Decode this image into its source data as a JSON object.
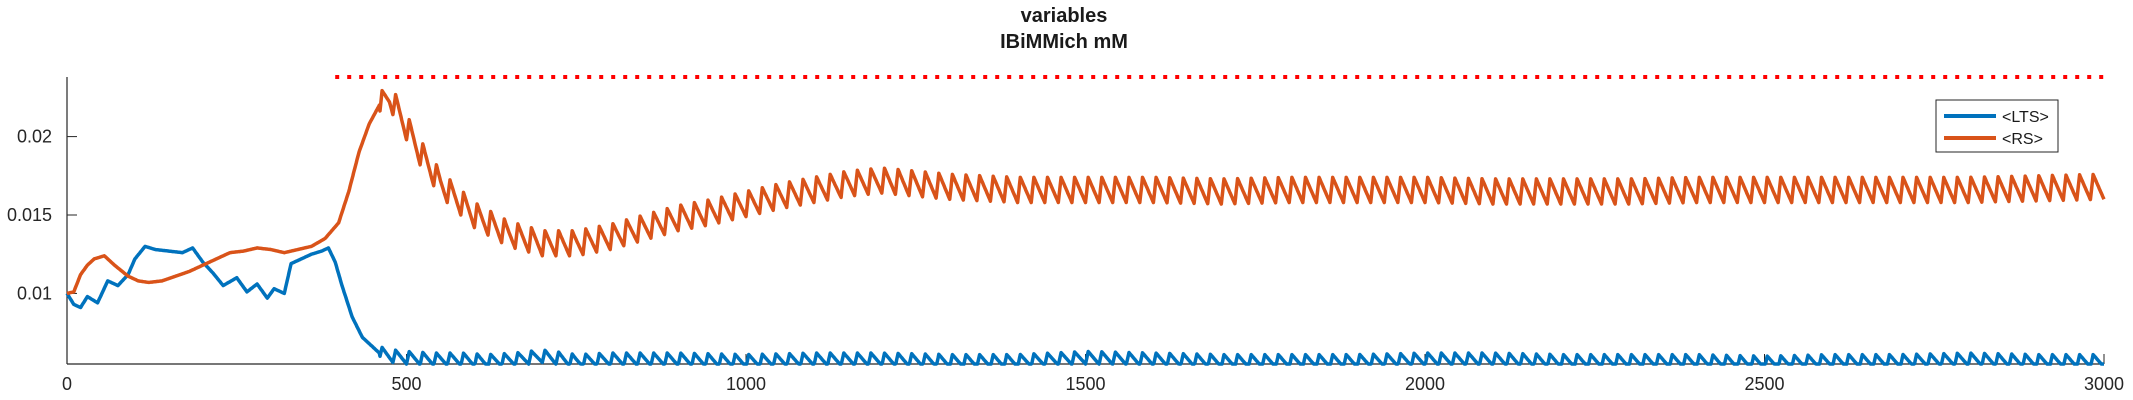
{
  "figure": {
    "title_line1": "variables",
    "title_line2": "IBiMMich mM"
  },
  "chart_data": {
    "type": "line",
    "title": "variables",
    "subtitle": "IBiMMich mM",
    "xlabel": "",
    "ylabel": "",
    "xlim": [
      0,
      3000
    ],
    "ylim": [
      0.0055,
      0.0238
    ],
    "x_ticks": [
      0,
      500,
      1000,
      1500,
      2000,
      2500,
      3000
    ],
    "x_tick_labels": [
      "0",
      "500",
      "1000",
      "1500",
      "2000",
      "2500",
      "3000"
    ],
    "y_ticks": [
      0.01,
      0.015,
      0.02
    ],
    "y_tick_labels": [
      "0.01",
      "0.015",
      "0.02"
    ],
    "grid": false,
    "legend_position": "top-right",
    "series": [
      {
        "name": "<LTS>",
        "color": "#0072BD",
        "x": [
          0,
          10,
          20,
          30,
          45,
          60,
          75,
          90,
          100,
          115,
          130,
          150,
          170,
          185,
          200,
          215,
          230,
          250,
          265,
          280,
          295,
          305,
          320,
          330,
          345,
          360,
          375,
          385,
          395,
          405,
          420,
          435,
          450,
          460,
          480,
          500,
          540,
          580,
          620,
          660,
          700,
          750,
          800,
          900,
          1000,
          1100,
          1200,
          1300,
          1400,
          1500,
          1600,
          1700,
          1800,
          1900,
          2000,
          2100,
          2200,
          2300,
          2400,
          2500,
          2600,
          2700,
          2800,
          2900,
          3000
        ],
        "y": [
          0.01,
          0.0093,
          0.0091,
          0.0098,
          0.0094,
          0.0108,
          0.0105,
          0.0112,
          0.0122,
          0.013,
          0.0128,
          0.0127,
          0.0126,
          0.0129,
          0.012,
          0.0113,
          0.0105,
          0.011,
          0.0101,
          0.0106,
          0.0097,
          0.0103,
          0.01,
          0.0119,
          0.0122,
          0.0125,
          0.0127,
          0.0129,
          0.012,
          0.0105,
          0.0085,
          0.0072,
          0.0066,
          0.0062,
          0.006,
          0.0059,
          0.0058,
          0.0058,
          0.0057,
          0.0058,
          0.006,
          0.0057,
          0.0058,
          0.0058,
          0.0057,
          0.0058,
          0.0058,
          0.0057,
          0.0057,
          0.0059,
          0.0058,
          0.0057,
          0.0057,
          0.0057,
          0.0058,
          0.0058,
          0.0057,
          0.0057,
          0.0057,
          0.0056,
          0.0057,
          0.0057,
          0.0058,
          0.0057,
          0.0057
        ],
        "oscillation_period": 20,
        "oscillation_amplitude": 0.0008
      },
      {
        "name": "<RS>",
        "color": "#D95319",
        "x": [
          0,
          10,
          20,
          30,
          40,
          55,
          70,
          90,
          105,
          120,
          140,
          160,
          180,
          200,
          220,
          240,
          260,
          280,
          300,
          320,
          340,
          360,
          380,
          400,
          415,
          430,
          445,
          460,
          475,
          480,
          495,
          520,
          550,
          600,
          650,
          700,
          750,
          800,
          850,
          900,
          950,
          1000,
          1050,
          1100,
          1150,
          1200,
          1250,
          1300,
          1400,
          1500,
          1600,
          1700,
          1800,
          1900,
          2000,
          2100,
          2200,
          2300,
          2400,
          2500,
          2600,
          2700,
          2800,
          2900,
          3000
        ],
        "y": [
          0.01,
          0.0101,
          0.0112,
          0.0118,
          0.0122,
          0.0124,
          0.0118,
          0.0111,
          0.0108,
          0.0107,
          0.0108,
          0.0111,
          0.0114,
          0.0118,
          0.0122,
          0.0126,
          0.0127,
          0.0129,
          0.0128,
          0.0126,
          0.0128,
          0.013,
          0.0135,
          0.0145,
          0.0165,
          0.019,
          0.0208,
          0.022,
          0.0225,
          0.0222,
          0.021,
          0.019,
          0.017,
          0.015,
          0.0138,
          0.0132,
          0.0132,
          0.0136,
          0.0142,
          0.0148,
          0.0152,
          0.0157,
          0.0162,
          0.0166,
          0.017,
          0.0172,
          0.017,
          0.0168,
          0.0166,
          0.0166,
          0.0166,
          0.0165,
          0.0166,
          0.0166,
          0.0166,
          0.0165,
          0.0165,
          0.0165,
          0.0166,
          0.0166,
          0.0166,
          0.0166,
          0.0166,
          0.0167,
          0.0168
        ],
        "oscillation_period": 20,
        "oscillation_amplitude": 0.0016
      }
    ],
    "reference_line": {
      "style": "dotted",
      "color": "#FF0000",
      "y": 0.0238,
      "x_start": 395,
      "x_end": 3000
    }
  }
}
